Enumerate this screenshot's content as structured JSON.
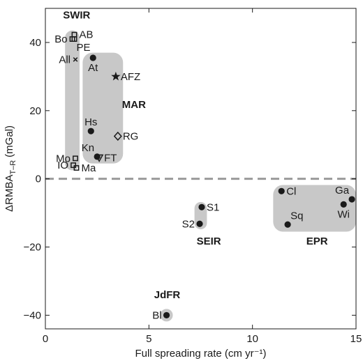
{
  "chart_data": {
    "type": "scatter",
    "title": "",
    "xlabel": "Full spreading rate (cm yr⁻¹)",
    "ylabel_main": "ΔRMBA",
    "ylabel_sub": "T–R",
    "ylabel_unit": "(mGal)",
    "xlim": [
      0,
      15
    ],
    "ylim": [
      -44,
      50
    ],
    "xticks": [
      0,
      5,
      10,
      15
    ],
    "xtick_labels": [
      "0",
      "5",
      "10",
      "15"
    ],
    "yticks": [
      -40,
      -20,
      0,
      20,
      40
    ],
    "ytick_labels": [
      "−40",
      "−20",
      "0",
      "20",
      "40"
    ],
    "grid": false,
    "reference_line": {
      "y": 0,
      "style": "dashed"
    },
    "colors": {
      "region_fill": "#c8c8c8",
      "marker": "#1a1a1a",
      "ref_line": "#9a9a9a"
    },
    "regions": [
      {
        "label": "SWIR",
        "x_range": [
          0.95,
          1.65
        ],
        "y_range": [
          2.5,
          43.5
        ]
      },
      {
        "label": "MAR",
        "x_range": [
          1.8,
          3.75
        ],
        "y_range": [
          4.5,
          37
        ]
      },
      {
        "label": "SEIR",
        "x_range": [
          7.2,
          7.8
        ],
        "y_range": [
          -14.8,
          -6.8
        ]
      },
      {
        "label": "EPR",
        "x_range": [
          11.0,
          15.0
        ],
        "y_range": [
          -15.5,
          -1.8
        ]
      },
      {
        "label": "JdFR",
        "x_range": [
          5.62,
          6.08
        ],
        "y_range": [
          -41.6,
          -38.4
        ]
      }
    ],
    "group_labels": [
      {
        "text": "SWIR",
        "x": 0.85,
        "y": 47.0
      },
      {
        "text": "MAR",
        "x": 3.7,
        "y": 20.8
      },
      {
        "text": "SEIR",
        "x": 7.3,
        "y": -19.3
      },
      {
        "text": "EPR",
        "x": 12.6,
        "y": -19.3
      },
      {
        "text": "JdFR",
        "x": 5.25,
        "y": -35.0
      }
    ],
    "points": [
      {
        "label": "AB",
        "x": 1.4,
        "y": 42.3,
        "marker": "square",
        "label_pos": "right"
      },
      {
        "label": "Bo",
        "x": 1.3,
        "y": 41.0,
        "marker": "square",
        "label_pos": "left"
      },
      {
        "label": "PE",
        "x": 1.4,
        "y": 41.0,
        "marker": "square",
        "label_pos": "below-right"
      },
      {
        "label": "All",
        "x": 1.45,
        "y": 35.0,
        "marker": "cross",
        "label_pos": "left"
      },
      {
        "label": "At",
        "x": 2.3,
        "y": 35.5,
        "marker": "circle",
        "label_pos": "below"
      },
      {
        "label": "AFZ",
        "x": 3.4,
        "y": 30.0,
        "marker": "star",
        "label_pos": "right"
      },
      {
        "label": "Hs",
        "x": 2.2,
        "y": 14.0,
        "marker": "circle",
        "label_pos": "above"
      },
      {
        "label": "RG",
        "x": 3.5,
        "y": 12.5,
        "marker": "diamond",
        "label_pos": "right"
      },
      {
        "label": "Kn",
        "x": 2.5,
        "y": 6.5,
        "marker": "circle",
        "label_pos": "above-left"
      },
      {
        "label": "FT",
        "x": 2.6,
        "y": 6.2,
        "marker": "triangle-down",
        "label_pos": "right"
      },
      {
        "label": "Mo",
        "x": 1.45,
        "y": 6.0,
        "marker": "square",
        "label_pos": "left"
      },
      {
        "label": "IO",
        "x": 1.35,
        "y": 4.0,
        "marker": "square",
        "label_pos": "left"
      },
      {
        "label": "Ma",
        "x": 1.5,
        "y": 3.2,
        "marker": "square",
        "label_pos": "right"
      },
      {
        "label": "S1",
        "x": 7.55,
        "y": -8.3,
        "marker": "circle",
        "label_pos": "right"
      },
      {
        "label": "S2",
        "x": 7.45,
        "y": -13.2,
        "marker": "circle",
        "label_pos": "left"
      },
      {
        "label": "Cl",
        "x": 11.4,
        "y": -3.6,
        "marker": "circle",
        "label_pos": "right"
      },
      {
        "label": "Sq",
        "x": 11.7,
        "y": -13.4,
        "marker": "circle",
        "label_pos": "above-right"
      },
      {
        "label": "Ga",
        "x": 14.8,
        "y": -6.0,
        "marker": "circle",
        "label_pos": "above-left"
      },
      {
        "label": "Wi",
        "x": 14.4,
        "y": -7.5,
        "marker": "circle",
        "label_pos": "below"
      },
      {
        "label": "Bl",
        "x": 5.85,
        "y": -40.0,
        "marker": "circle",
        "label_pos": "left"
      }
    ]
  }
}
